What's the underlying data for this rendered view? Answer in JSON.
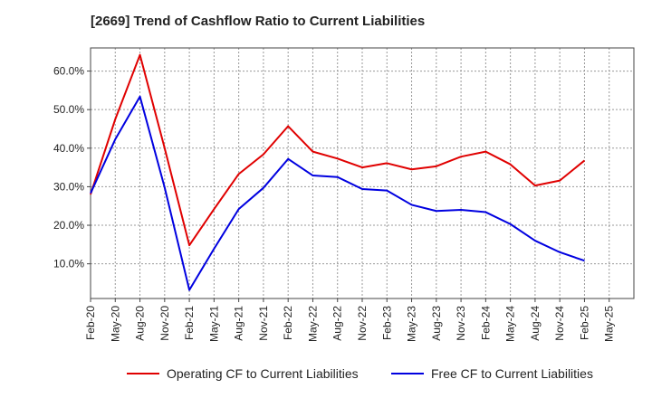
{
  "chart_data": {
    "type": "line",
    "title": "[2669]  Trend of Cashflow Ratio to Current Liabilities",
    "xlabel": "",
    "ylabel": "",
    "x_ticks": [
      "Feb-20",
      "May-20",
      "Aug-20",
      "Nov-20",
      "Feb-21",
      "May-21",
      "Aug-21",
      "Nov-21",
      "Feb-22",
      "May-22",
      "Aug-22",
      "Nov-22",
      "Feb-23",
      "May-23",
      "Aug-23",
      "Nov-23",
      "Feb-24",
      "May-24",
      "Aug-24",
      "Nov-24",
      "Feb-25",
      "May-25"
    ],
    "y_ticks": [
      "10.0%",
      "20.0%",
      "30.0%",
      "40.0%",
      "50.0%",
      "60.0%"
    ],
    "ylim": [
      1,
      66
    ],
    "grid": true,
    "legend_position": "bottom",
    "series": [
      {
        "name": "Operating CF to Current Liabilities",
        "color": "#e00000",
        "x": [
          "Feb-20",
          "May-20",
          "Aug-20",
          "Nov-20",
          "Feb-21",
          "May-21",
          "Aug-21",
          "Nov-21",
          "Feb-22",
          "May-22",
          "Aug-22",
          "Nov-22",
          "Feb-23",
          "May-23",
          "Aug-23",
          "Nov-23",
          "Feb-24",
          "May-24",
          "Aug-24",
          "Nov-24",
          "Feb-25"
        ],
        "values": [
          28.0,
          47.5,
          64.2,
          40.0,
          14.8,
          24.2,
          33.3,
          38.4,
          45.7,
          39.1,
          37.3,
          35.0,
          36.1,
          34.5,
          35.3,
          37.8,
          39.1,
          35.8,
          30.3,
          31.6,
          36.8
        ]
      },
      {
        "name": "Free CF to Current Liabilities",
        "color": "#0000e0",
        "x": [
          "Feb-20",
          "May-20",
          "Aug-20",
          "Nov-20",
          "Feb-21",
          "May-21",
          "Aug-21",
          "Nov-21",
          "Feb-22",
          "May-22",
          "Aug-22",
          "Nov-22",
          "Feb-23",
          "May-23",
          "Aug-23",
          "Nov-23",
          "Feb-24",
          "May-24",
          "Aug-24",
          "Nov-24",
          "Feb-25"
        ],
        "values": [
          28.3,
          42.3,
          53.4,
          29.8,
          3.2,
          13.9,
          24.2,
          29.7,
          37.2,
          32.9,
          32.5,
          29.4,
          29.0,
          25.3,
          23.7,
          24.0,
          23.4,
          20.3,
          16.0,
          13.0,
          10.8
        ]
      }
    ]
  }
}
